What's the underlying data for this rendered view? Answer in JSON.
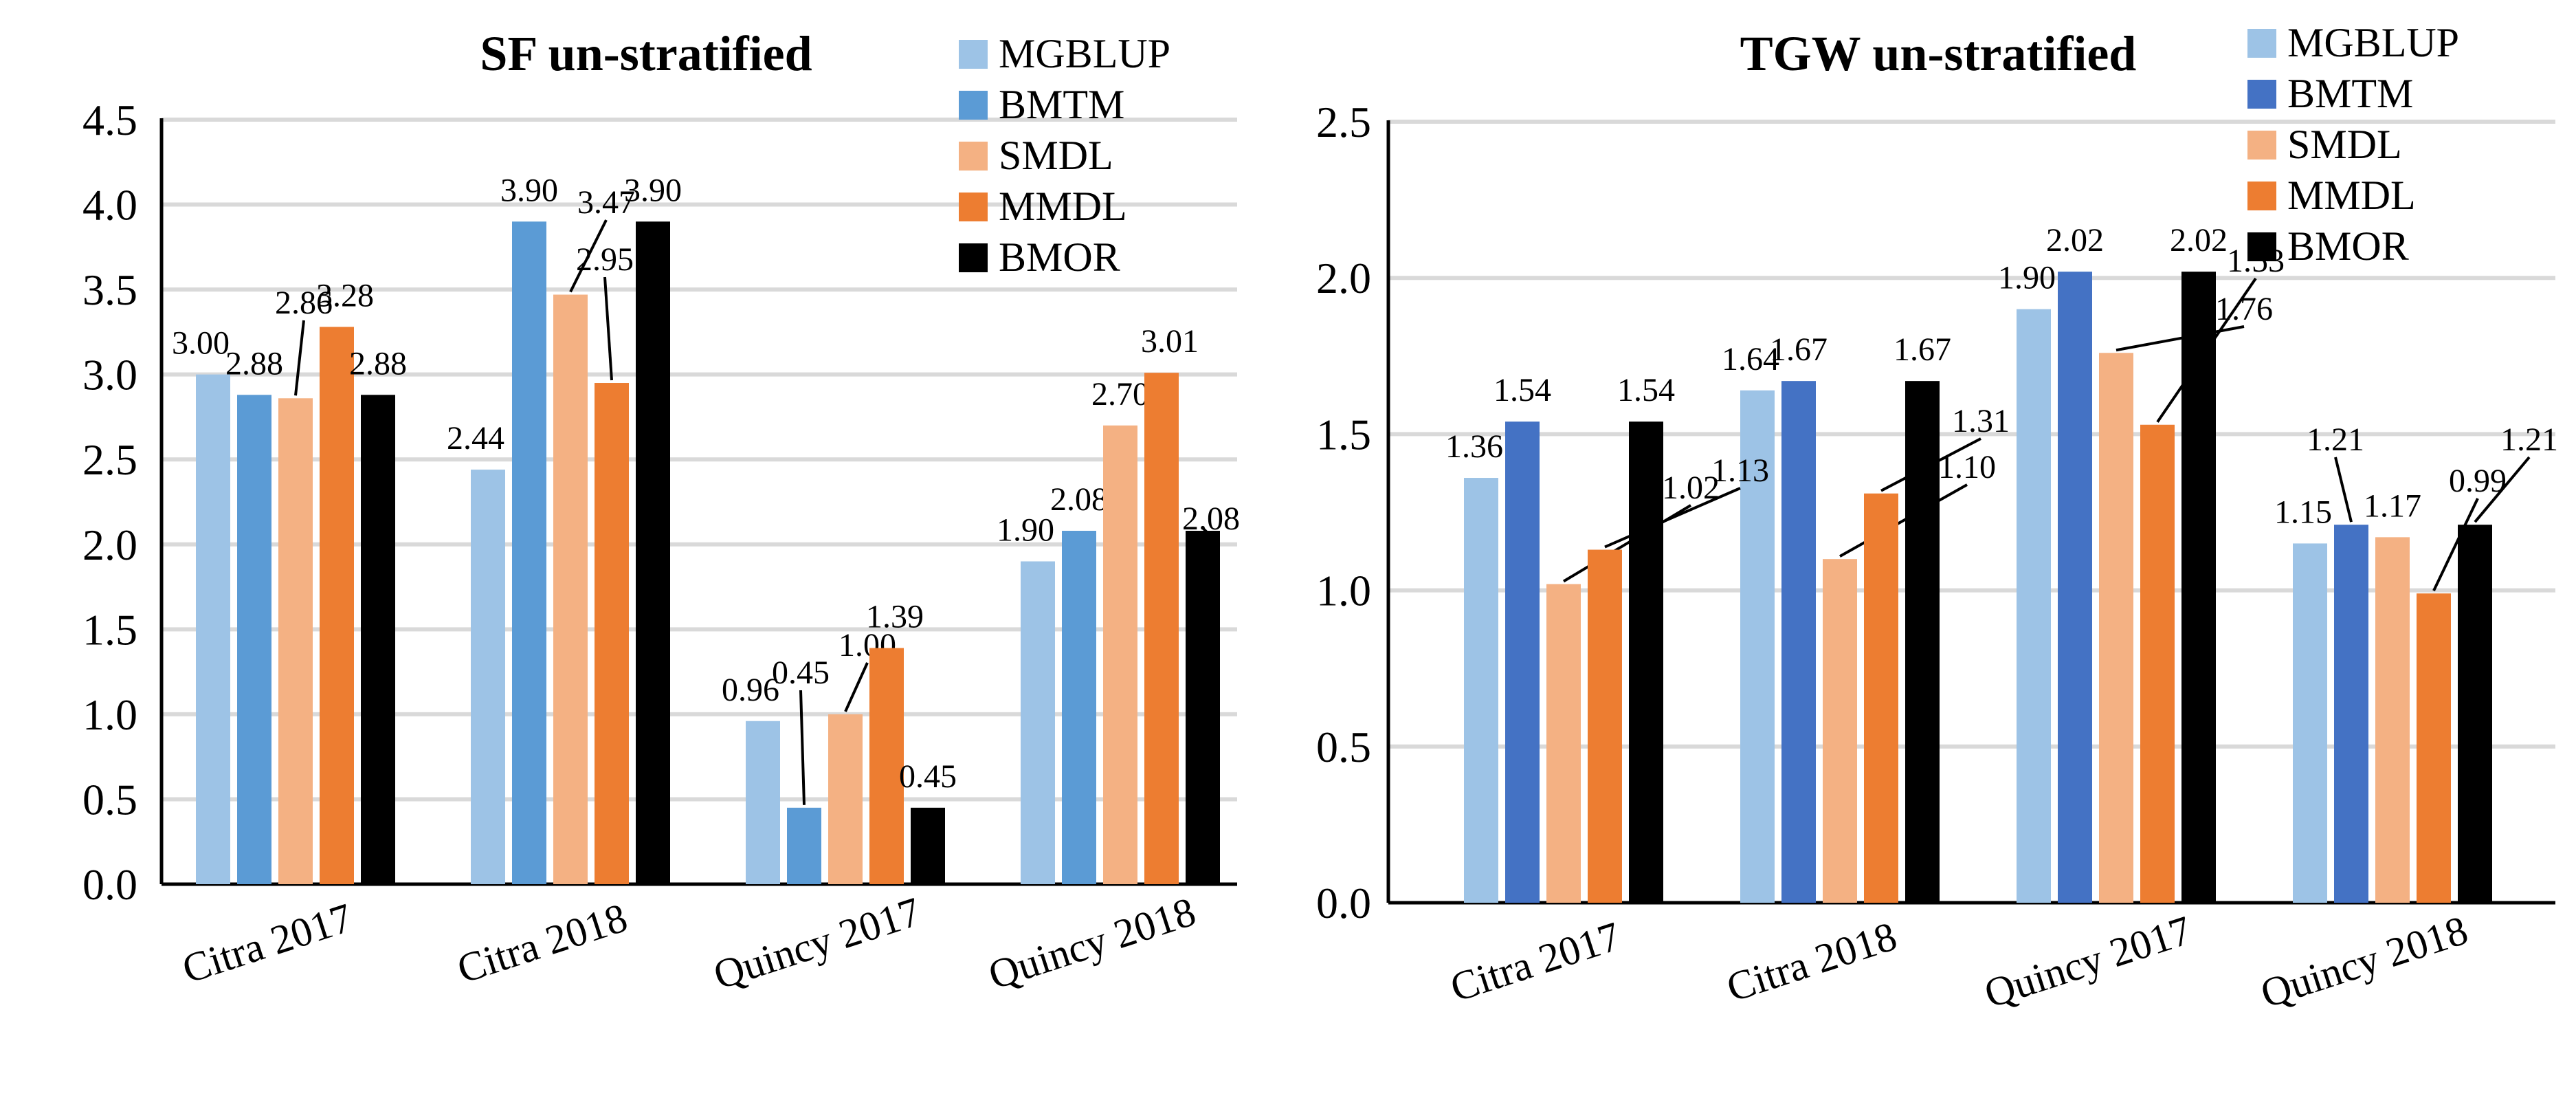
{
  "chart_data": [
    {
      "type": "bar",
      "title": "SF un-stratified",
      "categories": [
        "Citra 2017",
        "Citra 2018",
        "Quincy 2017",
        "Quincy 2018"
      ],
      "ylim": [
        0,
        4.5
      ],
      "yticks": [
        "0.0",
        "0.5",
        "1.0",
        "1.5",
        "2.0",
        "2.5",
        "3.0",
        "3.5",
        "4.0",
        "4.5"
      ],
      "grid": true,
      "legend_position": "top-right",
      "series": [
        {
          "name": "MGBLUP",
          "color": "#9dc3e6",
          "values": [
            3.0,
            2.44,
            0.96,
            1.9
          ],
          "labels": [
            "3.00",
            "2.44",
            "0.96",
            "1.90"
          ]
        },
        {
          "name": "BMTM",
          "color": "#5b9bd5",
          "values": [
            2.88,
            3.9,
            0.45,
            2.08
          ],
          "labels": [
            "2.88",
            "3.90",
            "0.45",
            "2.08"
          ]
        },
        {
          "name": "SMDL",
          "color": "#f4b183",
          "values": [
            2.86,
            3.47,
            1.0,
            2.7
          ],
          "labels": [
            "2.86",
            "3.47",
            "1.00",
            "2.70"
          ]
        },
        {
          "name": "MMDL",
          "color": "#ed7d31",
          "values": [
            3.28,
            2.95,
            1.39,
            3.01
          ],
          "labels": [
            "3.28",
            "2.95",
            "1.39",
            "3.01"
          ]
        },
        {
          "name": "BMOR",
          "color": "#000000",
          "values": [
            2.88,
            3.9,
            0.45,
            2.08
          ],
          "labels": [
            "2.88",
            "3.90",
            "0.45",
            "2.08"
          ]
        }
      ]
    },
    {
      "type": "bar",
      "title": "TGW un-stratified",
      "categories": [
        "Citra 2017",
        "Citra 2018",
        "Quincy 2017",
        "Quincy 2018"
      ],
      "ylim": [
        0,
        2.5
      ],
      "yticks": [
        "0.0",
        "0.5",
        "1.0",
        "1.5",
        "2.0",
        "2.5"
      ],
      "grid": true,
      "legend_position": "top-right",
      "series": [
        {
          "name": "MGBLUP",
          "color": "#9dc3e6",
          "values": [
            1.36,
            1.64,
            1.9,
            1.15
          ],
          "labels": [
            "1.36",
            "1.64",
            "1.90",
            "1.15"
          ]
        },
        {
          "name": "BMTM",
          "color": "#4472c4",
          "values": [
            1.54,
            1.67,
            2.02,
            1.21
          ],
          "labels": [
            "1.54",
            "1.67",
            "2.02",
            "1.21"
          ]
        },
        {
          "name": "SMDL",
          "color": "#f4b183",
          "values": [
            1.02,
            1.1,
            1.76,
            1.17
          ],
          "labels": [
            "1.02",
            "1.10",
            "1.76",
            "1.17"
          ]
        },
        {
          "name": "MMDL",
          "color": "#ed7d31",
          "values": [
            1.13,
            1.31,
            1.53,
            0.99
          ],
          "labels": [
            "1.13",
            "1.31",
            "1.53",
            "0.99"
          ]
        },
        {
          "name": "BMOR",
          "color": "#000000",
          "values": [
            1.54,
            1.67,
            2.02,
            1.21
          ],
          "labels": [
            "1.54",
            "1.67",
            "2.02",
            "1.21"
          ]
        }
      ]
    }
  ]
}
